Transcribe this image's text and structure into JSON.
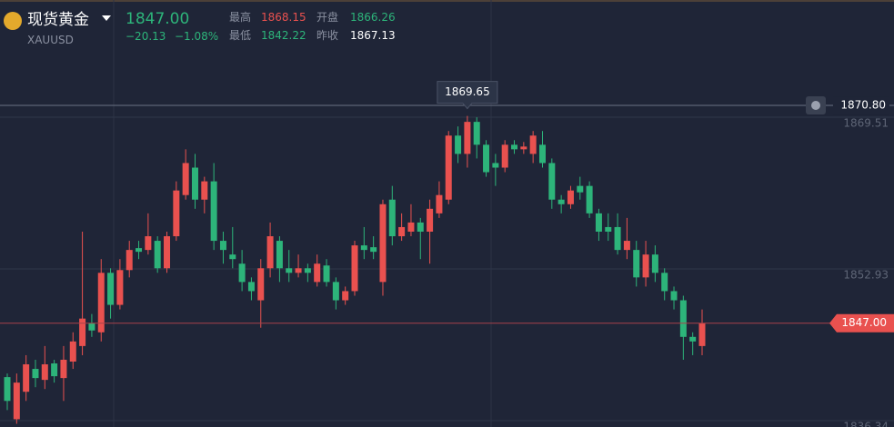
{
  "header": {
    "title": "现货黄金",
    "symbol": "XAUUSD",
    "price": "1847.00",
    "change": "−20.13",
    "change_pct": "−1.08%",
    "high_label": "最高",
    "high": "1868.15",
    "open_label": "开盘",
    "open": "1866.26",
    "low_label": "最低",
    "low": "1842.22",
    "prev_label": "昨收",
    "prev": "1867.13"
  },
  "chart_data": {
    "type": "candlestick",
    "ylim": [
      1835.65,
      1882.32
    ],
    "yticks": [
      1836.34,
      1852.93,
      1869.51
    ],
    "grid": true,
    "up_color": "#e9514f",
    "down_color": "#2db47a",
    "last_price": {
      "value": 1847,
      "label": "1847.00"
    },
    "alert": {
      "value": 1870.8,
      "label": "1870.80"
    },
    "max_marker": {
      "value": 1869.65,
      "label": "1869.65"
    },
    "open": [
      1841.1,
      1836.5,
      1839.5,
      1842.0,
      1840.8,
      1842.6,
      1841.0,
      1842.8,
      1844.5,
      1847.0,
      1846.0,
      1852.5,
      1849.0,
      1852.8,
      1855.2,
      1855.0,
      1856.0,
      1853.0,
      1856.5,
      1861.0,
      1864.0,
      1860.5,
      1862.5,
      1856.0,
      1854.5,
      1853.5,
      1851.5,
      1849.5,
      1853.0,
      1856.0,
      1853.0,
      1852.5,
      1853.0,
      1851.5,
      1853.3,
      1851.5,
      1849.5,
      1850.5,
      1855.5,
      1855.3,
      1851.5,
      1860.5,
      1856.5,
      1857.0,
      1858.0,
      1857.0,
      1859.0,
      1860.5,
      1867.5,
      1865.5,
      1869.0,
      1866.5,
      1864.5,
      1864.0,
      1866.5,
      1866.0,
      1865.5,
      1866.5,
      1864.5,
      1860.5,
      1860.0,
      1862.0,
      1862.0,
      1859.0,
      1857.5,
      1857.5,
      1855.0,
      1855.0,
      1852.0,
      1854.5,
      1852.5,
      1850.5,
      1849.5,
      1845.5,
      1844.5
    ],
    "high": [
      1841.5,
      1841.5,
      1843.5,
      1843.0,
      1844.5,
      1843.0,
      1844.5,
      1846.0,
      1857.0,
      1848.0,
      1854.0,
      1853.0,
      1854.0,
      1856.0,
      1856.0,
      1859.0,
      1856.5,
      1857.0,
      1862.5,
      1866.0,
      1865.5,
      1863.0,
      1864.5,
      1857.0,
      1857.5,
      1855.0,
      1852.0,
      1854.0,
      1858.0,
      1856.5,
      1855.0,
      1854.5,
      1853.5,
      1854.5,
      1854.0,
      1852.0,
      1851.0,
      1856.0,
      1857.5,
      1856.5,
      1860.5,
      1862.0,
      1859.0,
      1860.0,
      1858.5,
      1860.5,
      1862.5,
      1868.0,
      1868.5,
      1869.65,
      1869.5,
      1867.0,
      1865.5,
      1867.0,
      1867.0,
      1866.8,
      1868.0,
      1868.0,
      1865.0,
      1861.0,
      1862.0,
      1863.0,
      1862.5,
      1859.5,
      1859.0,
      1859.0,
      1858.5,
      1856.0,
      1856.0,
      1855.5,
      1853.0,
      1851.0,
      1850.0,
      1846.0,
      1848.5
    ],
    "low": [
      1837.5,
      1836.0,
      1838.5,
      1840.0,
      1839.8,
      1840.5,
      1838.5,
      1842.0,
      1843.5,
      1845.5,
      1845.0,
      1847.5,
      1848.5,
      1852.0,
      1854.0,
      1854.5,
      1852.5,
      1852.5,
      1856.0,
      1860.5,
      1859.5,
      1859.0,
      1855.0,
      1853.5,
      1853.0,
      1850.5,
      1849.5,
      1846.5,
      1852.0,
      1851.5,
      1851.5,
      1852.0,
      1851.5,
      1851.0,
      1851.0,
      1848.5,
      1849.0,
      1850.0,
      1854.0,
      1854.0,
      1850.0,
      1855.5,
      1856.0,
      1856.5,
      1854.0,
      1853.5,
      1858.5,
      1860.0,
      1864.5,
      1864.0,
      1865.0,
      1863.0,
      1862.0,
      1863.5,
      1865.5,
      1865.5,
      1864.5,
      1864.0,
      1859.5,
      1859.0,
      1859.5,
      1860.5,
      1858.5,
      1856.0,
      1856.0,
      1854.5,
      1854.0,
      1851.0,
      1851.0,
      1851.5,
      1849.5,
      1848.5,
      1843.0,
      1843.5,
      1843.5
    ],
    "close": [
      1838.5,
      1840.5,
      1842.5,
      1841.0,
      1842.5,
      1841.2,
      1843.0,
      1845.0,
      1847.5,
      1846.2,
      1852.5,
      1849.0,
      1852.8,
      1855.0,
      1854.8,
      1856.5,
      1853.0,
      1856.5,
      1861.5,
      1864.5,
      1860.5,
      1862.5,
      1856.0,
      1855.0,
      1854.0,
      1851.5,
      1850.5,
      1853.0,
      1856.5,
      1853.0,
      1852.5,
      1853.0,
      1852.5,
      1853.5,
      1851.5,
      1849.5,
      1850.5,
      1855.5,
      1855.0,
      1854.8,
      1860.0,
      1856.5,
      1857.5,
      1858.0,
      1857.0,
      1859.5,
      1861.0,
      1867.5,
      1865.5,
      1869.0,
      1866.5,
      1863.5,
      1864.0,
      1866.5,
      1866.0,
      1866.3,
      1867.5,
      1864.5,
      1860.5,
      1860.0,
      1861.5,
      1861.3,
      1859.0,
      1857.0,
      1857.0,
      1855.0,
      1856.0,
      1852.0,
      1854.5,
      1852.5,
      1850.5,
      1849.5,
      1845.5,
      1845.0,
      1847.0
    ]
  }
}
